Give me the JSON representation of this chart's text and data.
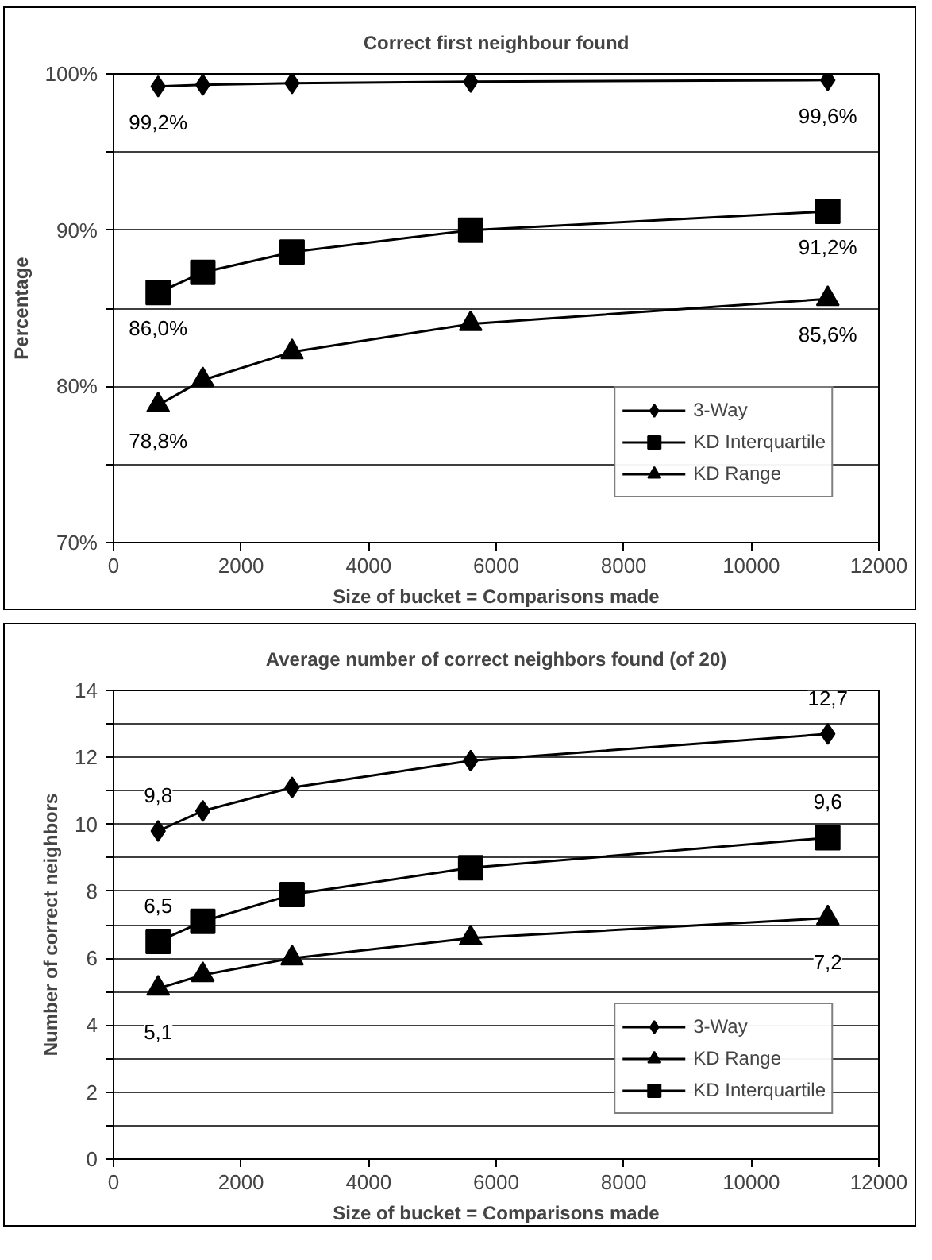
{
  "chart_data": [
    {
      "type": "line",
      "title": "Correct first neighbour found",
      "xlabel": "Size of bucket = Comparisons made",
      "ylabel": "Percentage",
      "x": [
        700,
        1400,
        2800,
        5600,
        11200
      ],
      "series": [
        {
          "name": "3-Way",
          "color": "#000000",
          "marker": "diamond",
          "values": [
            99.2,
            99.3,
            99.4,
            99.5,
            99.6
          ],
          "value_labels": [
            "99,2%",
            null,
            null,
            null,
            "99,6%"
          ]
        },
        {
          "name": "KD Interquartile",
          "color": "#000000",
          "marker": "square",
          "values": [
            86.0,
            87.3,
            88.6,
            90.0,
            91.2
          ],
          "value_labels": [
            "86,0%",
            null,
            null,
            null,
            "91,2%"
          ]
        },
        {
          "name": "KD Range",
          "color": "#000000",
          "marker": "triangle",
          "values": [
            78.8,
            80.4,
            82.2,
            84.0,
            85.6
          ],
          "value_labels": [
            "78,8%",
            null,
            null,
            null,
            "85,6%"
          ]
        }
      ],
      "xlim": [
        0,
        12000
      ],
      "xticks": [
        0,
        2000,
        4000,
        6000,
        8000,
        10000,
        12000
      ],
      "ylim": [
        70,
        100
      ],
      "yticks": [
        {
          "value": 70,
          "label": "70%"
        },
        {
          "value": 75,
          "label": null
        },
        {
          "value": 80,
          "label": "80%"
        },
        {
          "value": 85,
          "label": null
        },
        {
          "value": 90,
          "label": "90%"
        },
        {
          "value": 95,
          "label": null
        },
        {
          "value": 100,
          "label": "100%"
        }
      ],
      "grid": "y",
      "legend": "bottom right",
      "line_style": "solid"
    },
    {
      "type": "line",
      "title": "Average number of correct neighbors found (of 20)",
      "xlabel": "Size of bucket = Comparisons made",
      "ylabel": "Number of correct neighbors",
      "x": [
        700,
        1400,
        2800,
        5600,
        11200
      ],
      "series": [
        {
          "name": "3-Way",
          "color": "#000000",
          "marker": "diamond",
          "values": [
            9.8,
            10.4,
            11.1,
            11.9,
            12.7
          ],
          "value_labels": [
            "9,8",
            null,
            null,
            null,
            "12,7"
          ]
        },
        {
          "name": "KD Range",
          "color": "#000000",
          "marker": "triangle",
          "values": [
            5.1,
            5.5,
            6.0,
            6.6,
            7.2
          ],
          "value_labels": [
            "5,1",
            null,
            null,
            null,
            "7,2"
          ]
        },
        {
          "name": "KD Interquartile",
          "color": "#000000",
          "marker": "square",
          "values": [
            6.5,
            7.1,
            7.9,
            8.7,
            9.6
          ],
          "value_labels": [
            "6,5",
            null,
            null,
            null,
            "9,6"
          ]
        }
      ],
      "xlim": [
        0,
        12000
      ],
      "xticks": [
        0,
        2000,
        4000,
        6000,
        8000,
        10000,
        12000
      ],
      "ylim": [
        0,
        14
      ],
      "yticks": [
        0,
        {
          "value": 1,
          "label": null
        },
        2,
        {
          "value": 3,
          "label": null
        },
        4,
        {
          "value": 5,
          "label": null
        },
        6,
        {
          "value": 7,
          "label": null
        },
        8,
        {
          "value": 9,
          "label": null
        },
        10,
        {
          "value": 11,
          "label": null
        },
        12,
        {
          "value": 13,
          "label": null
        },
        14
      ],
      "grid": "y",
      "legend": "bottom right",
      "line_style": "solid"
    }
  ]
}
